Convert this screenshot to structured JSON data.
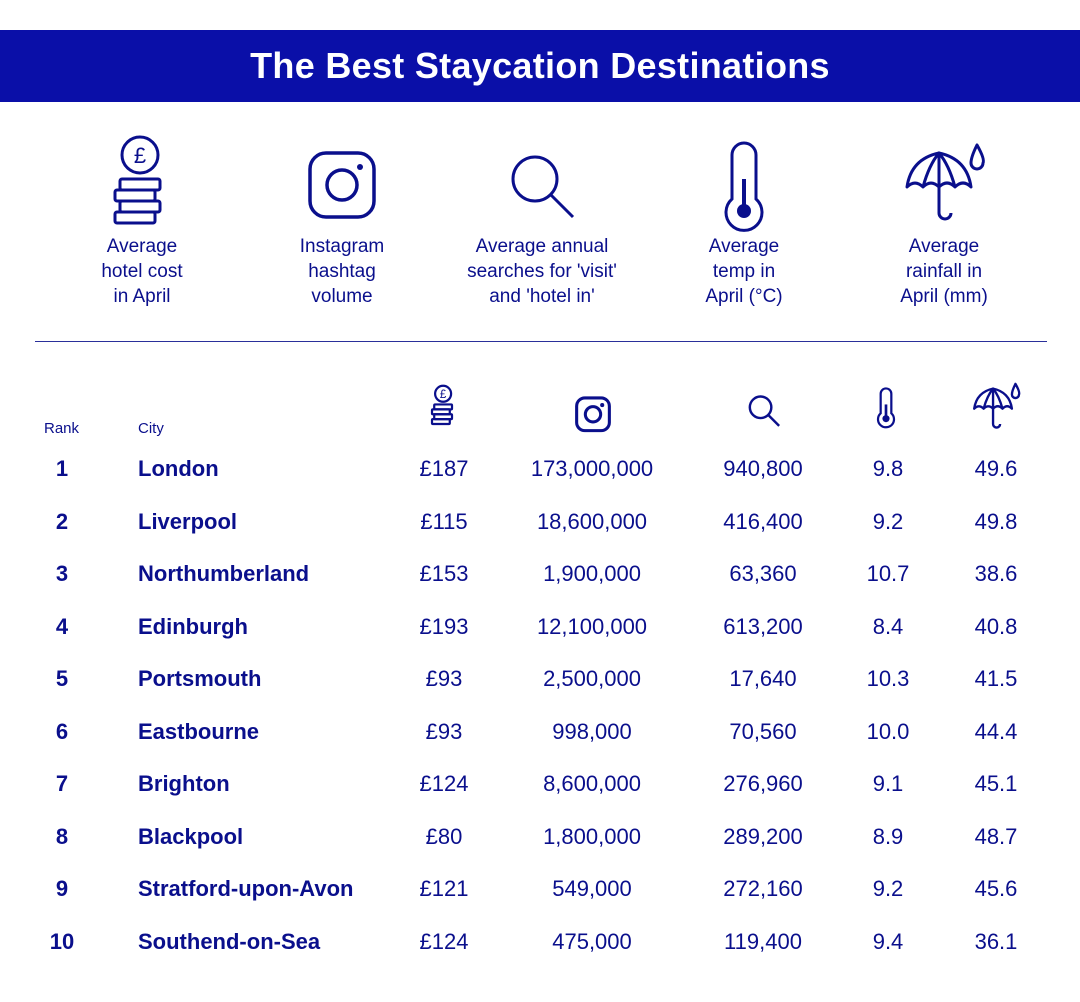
{
  "title": "The Best Staycation Destinations",
  "colors": {
    "accent": "#0a0fa8",
    "text": "#0a0f8c",
    "background": "#ffffff"
  },
  "legend": [
    {
      "icon": "pound-coins-icon",
      "label": "Average\nhotel cost\nin April"
    },
    {
      "icon": "instagram-icon",
      "label": "Instagram\nhashtag\nvolume"
    },
    {
      "icon": "magnifier-icon",
      "label": "Average annual\nsearches for 'visit'\nand 'hotel in'"
    },
    {
      "icon": "thermometer-icon",
      "label": "Average\ntemp in\nApril (°C)"
    },
    {
      "icon": "umbrella-rain-icon",
      "label": "Average\nrainfall in\nApril (mm)"
    }
  ],
  "chart_data": {
    "type": "table",
    "title": "The Best Staycation Destinations",
    "columns": [
      "Rank",
      "City",
      "Average hotel cost in April",
      "Instagram hashtag volume",
      "Average annual searches for 'visit' and 'hotel in'",
      "Average temp in April (°C)",
      "Average rainfall in April (mm)"
    ],
    "headers": {
      "rank": "Rank",
      "city": "City"
    },
    "rows": [
      {
        "rank": "1",
        "city": "London",
        "cost": "£187",
        "instagram": "173,000,000",
        "searches": "940,800",
        "temp": "9.8",
        "rain": "49.6"
      },
      {
        "rank": "2",
        "city": "Liverpool",
        "cost": "£115",
        "instagram": "18,600,000",
        "searches": "416,400",
        "temp": "9.2",
        "rain": "49.8"
      },
      {
        "rank": "3",
        "city": "Northumberland",
        "cost": "£153",
        "instagram": "1,900,000",
        "searches": "63,360",
        "temp": "10.7",
        "rain": "38.6"
      },
      {
        "rank": "4",
        "city": "Edinburgh",
        "cost": "£193",
        "instagram": "12,100,000",
        "searches": "613,200",
        "temp": "8.4",
        "rain": "40.8"
      },
      {
        "rank": "5",
        "city": "Portsmouth",
        "cost": "£93",
        "instagram": "2,500,000",
        "searches": "17,640",
        "temp": "10.3",
        "rain": "41.5"
      },
      {
        "rank": "6",
        "city": "Eastbourne",
        "cost": "£93",
        "instagram": "998,000",
        "searches": "70,560",
        "temp": "10.0",
        "rain": "44.4"
      },
      {
        "rank": "7",
        "city": "Brighton",
        "cost": "£124",
        "instagram": "8,600,000",
        "searches": "276,960",
        "temp": "9.1",
        "rain": "45.1"
      },
      {
        "rank": "8",
        "city": "Blackpool",
        "cost": "£80",
        "instagram": "1,800,000",
        "searches": "289,200",
        "temp": "8.9",
        "rain": "48.7"
      },
      {
        "rank": "9",
        "city": "Stratford-upon-Avon",
        "cost": "£121",
        "instagram": "549,000",
        "searches": "272,160",
        "temp": "9.2",
        "rain": "45.6"
      },
      {
        "rank": "10",
        "city": "Southend-on-Sea",
        "cost": "£124",
        "instagram": "475,000",
        "searches": "119,400",
        "temp": "9.4",
        "rain": "36.1"
      }
    ]
  }
}
